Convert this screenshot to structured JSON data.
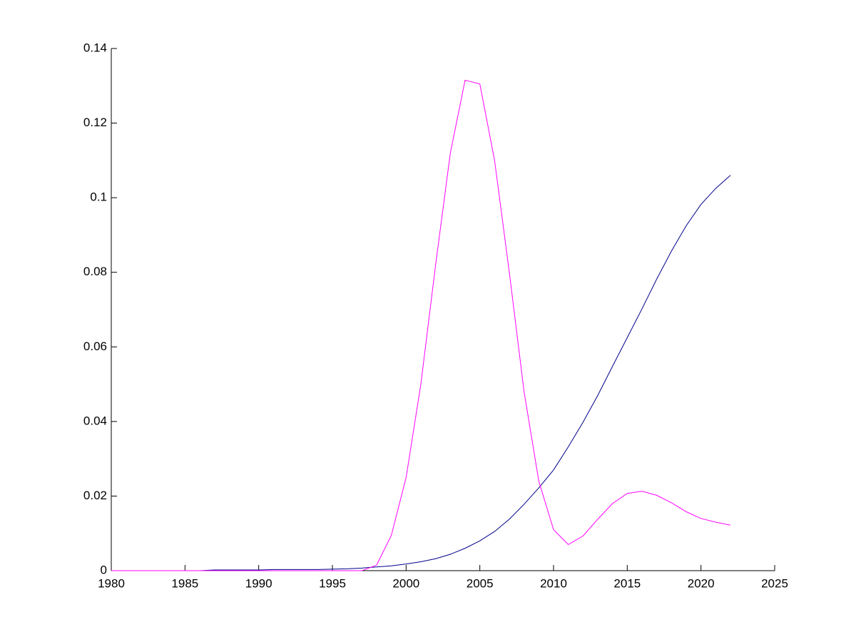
{
  "chart_data": {
    "type": "line",
    "x": [
      1980,
      1981,
      1982,
      1983,
      1984,
      1985,
      1986,
      1987,
      1988,
      1989,
      1990,
      1991,
      1992,
      1993,
      1994,
      1995,
      1996,
      1997,
      1998,
      1999,
      2000,
      2001,
      2002,
      2003,
      2004,
      2005,
      2006,
      2007,
      2008,
      2009,
      2010,
      2011,
      2012,
      2013,
      2014,
      2015,
      2016,
      2017,
      2018,
      2019,
      2020,
      2021,
      2022
    ],
    "series": [
      {
        "color": "#00008b",
        "values": [
          0,
          0,
          0,
          0,
          0,
          0,
          0,
          0.0002,
          0.0002,
          0.0002,
          0.0002,
          0.0003,
          0.0003,
          0.0003,
          0.0003,
          0.0004,
          0.0005,
          0.0007,
          0.001,
          0.0013,
          0.0018,
          0.0024,
          0.0032,
          0.0044,
          0.006,
          0.008,
          0.0105,
          0.0138,
          0.0178,
          0.0222,
          0.027,
          0.0332,
          0.0398,
          0.047,
          0.0548,
          0.0625,
          0.0702,
          0.0782,
          0.0857,
          0.0925,
          0.0982,
          0.1025,
          0.106
        ]
      },
      {
        "color": "#ff00ff",
        "values": [
          0,
          0,
          0,
          0,
          0,
          0,
          0,
          0,
          0,
          0,
          0,
          0,
          0,
          0,
          0,
          0,
          0,
          0,
          0.0015,
          0.0095,
          0.025,
          0.05,
          0.082,
          0.112,
          0.1315,
          0.1305,
          0.11,
          0.08,
          0.048,
          0.024,
          0.011,
          0.007,
          0.0093,
          0.0138,
          0.018,
          0.0207,
          0.0213,
          0.0202,
          0.0182,
          0.0158,
          0.014,
          0.013,
          0.0122
        ]
      }
    ],
    "xlim": [
      1980,
      2025
    ],
    "xticks": [
      1980,
      1985,
      1990,
      1995,
      2000,
      2005,
      2010,
      2015,
      2020,
      2025
    ],
    "ylim": [
      0,
      0.14
    ],
    "yticks": [
      0,
      0.02,
      0.04,
      0.06,
      0.08,
      0.1,
      0.12,
      0.14
    ]
  }
}
